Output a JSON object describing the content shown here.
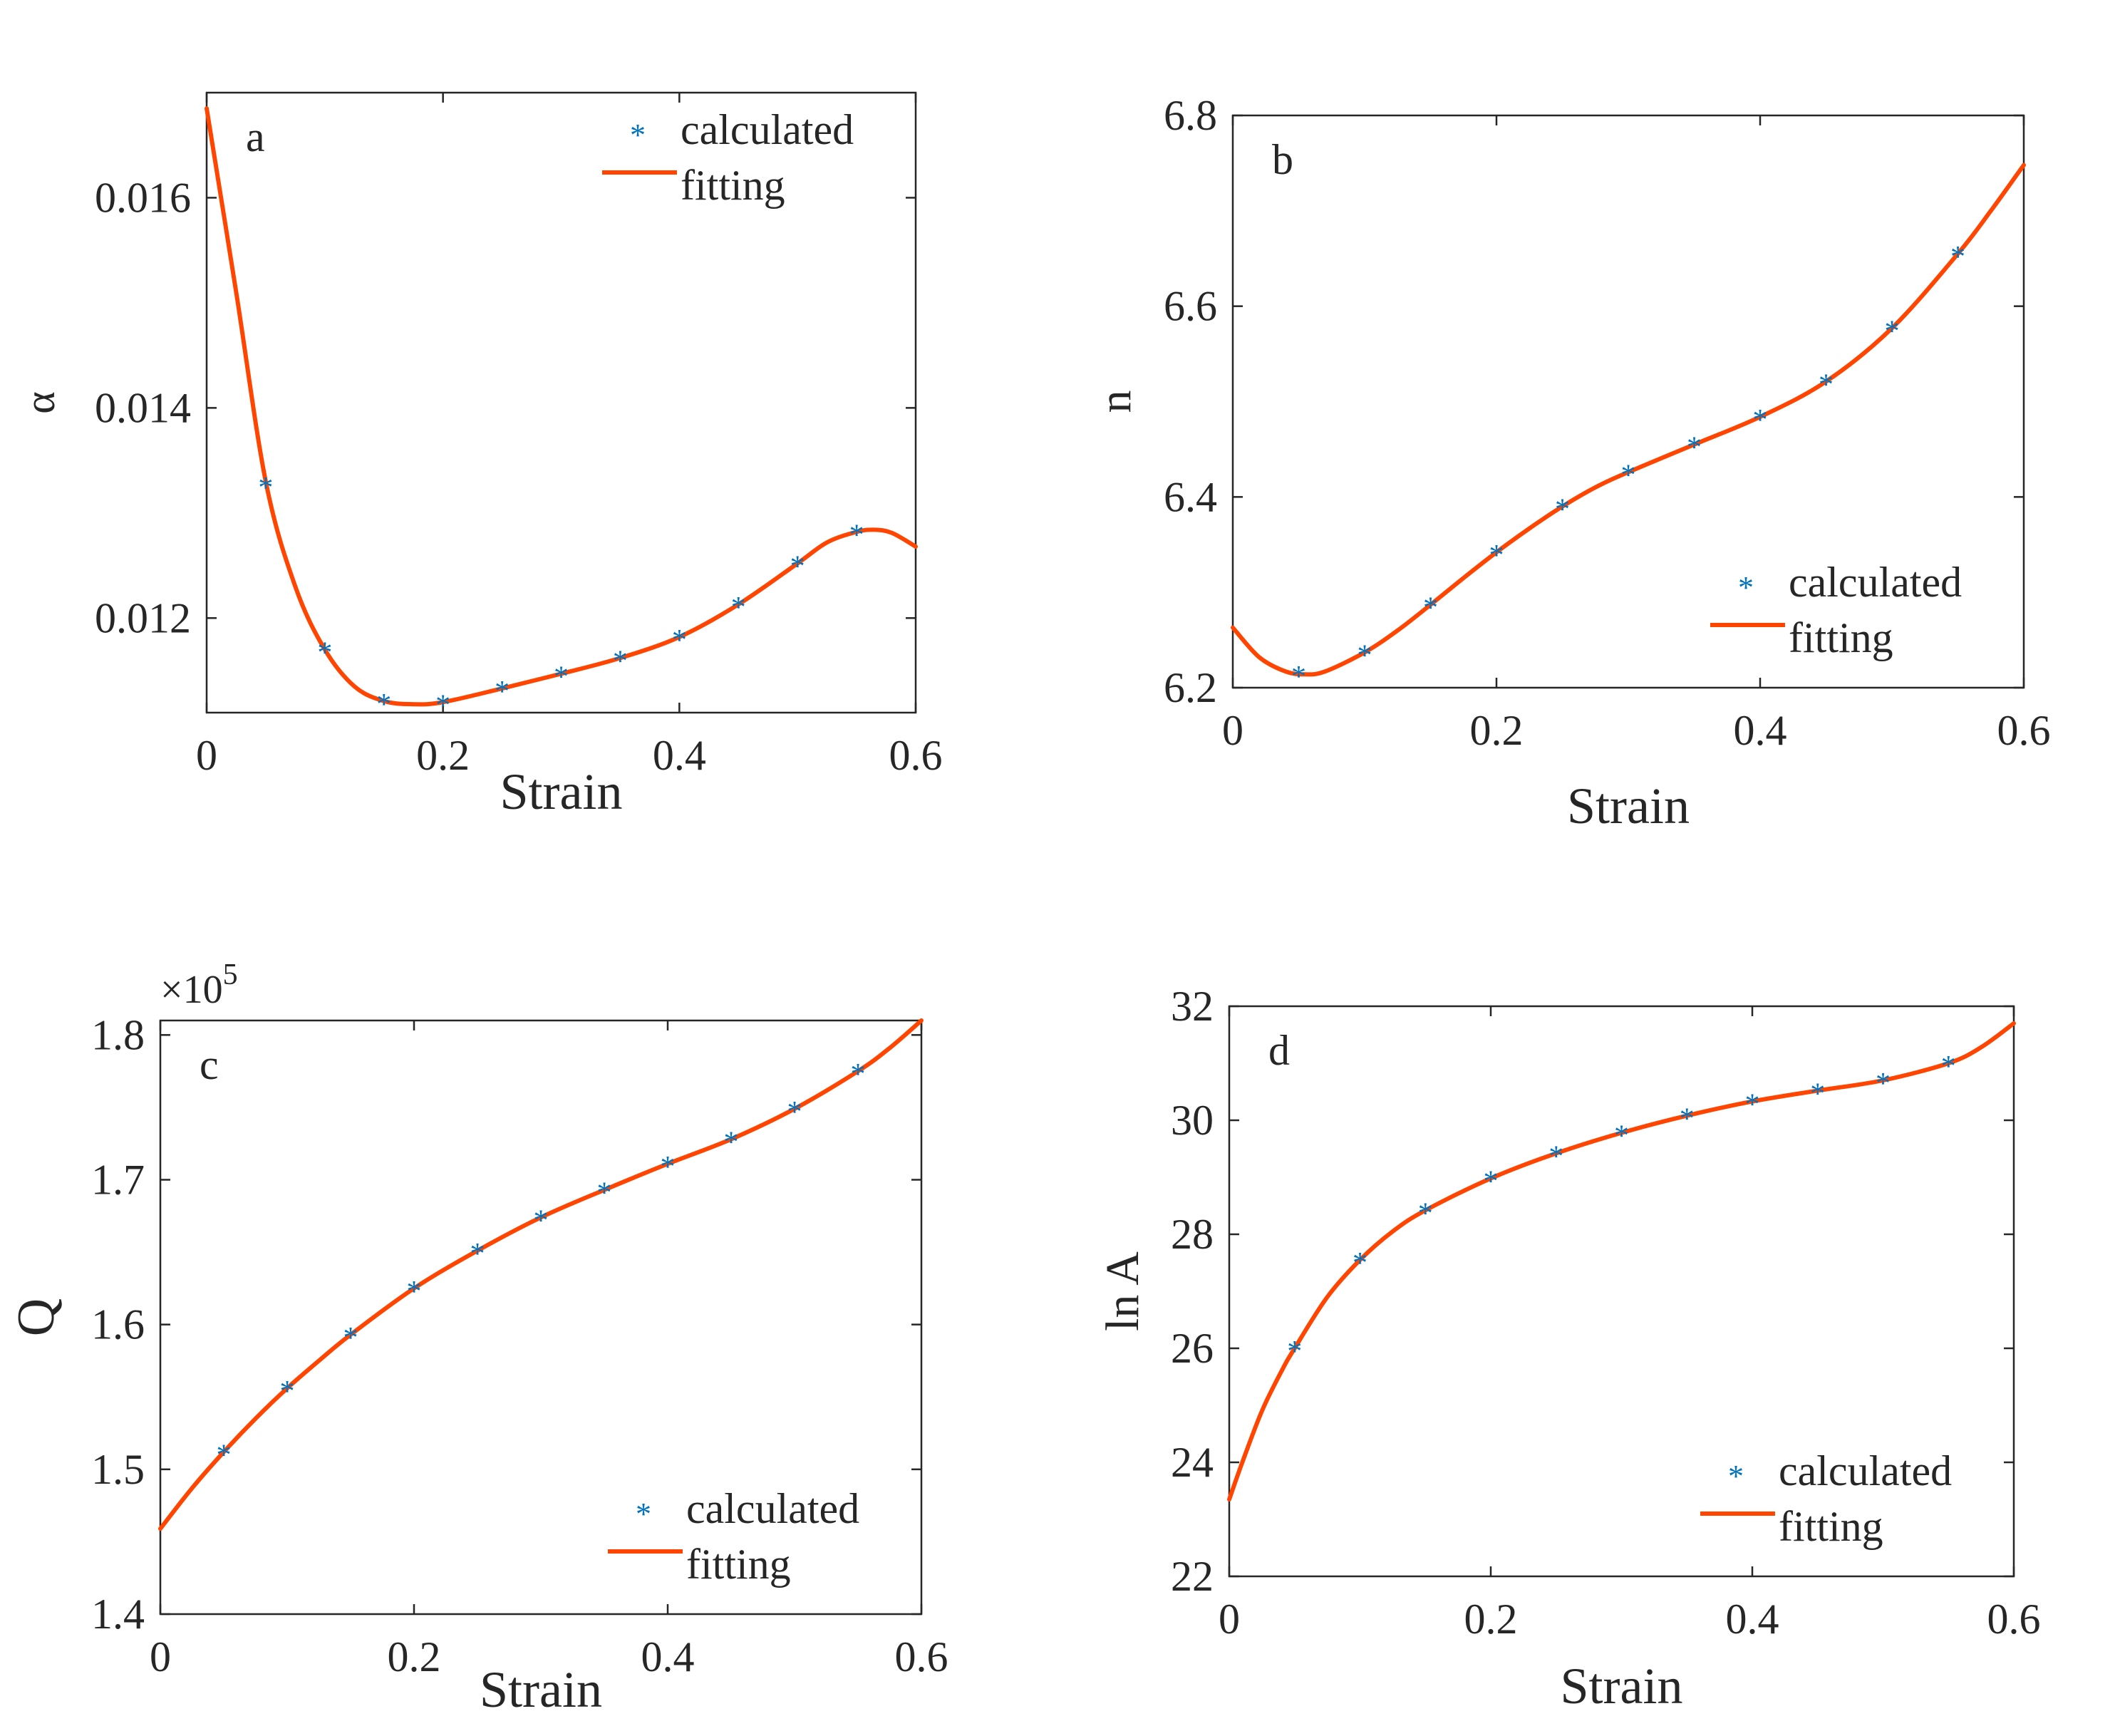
{
  "colors": {
    "calculated": "#0072BD",
    "fitting": "#FF4500",
    "axis": "#262626"
  },
  "chart_data": [
    {
      "type": "line",
      "panel_label": "a",
      "xlabel": "Strain",
      "ylabel": "α",
      "xlim": [
        0,
        0.6
      ],
      "ylim": [
        0.0111,
        0.017
      ],
      "xticks": [
        0,
        0.2,
        0.4,
        0.6
      ],
      "xtick_labels": [
        "0",
        "0.2",
        "0.4",
        "0.6"
      ],
      "yticks": [
        0.012,
        0.014,
        0.016
      ],
      "ytick_labels": [
        "0.012",
        "0.014",
        "0.016"
      ],
      "exponent_label": "",
      "legend_position": "top-right",
      "series": [
        {
          "name": "calculated",
          "style": "markers",
          "x": [
            0.05,
            0.1,
            0.15,
            0.2,
            0.25,
            0.3,
            0.35,
            0.4,
            0.45,
            0.5,
            0.55
          ],
          "y": [
            0.01327,
            0.0117,
            0.01121,
            0.0112,
            0.01133,
            0.01147,
            0.01162,
            0.01182,
            0.01213,
            0.01252,
            0.01282
          ]
        },
        {
          "name": "fitting",
          "style": "line",
          "x": [
            0,
            0.025,
            0.05,
            0.075,
            0.1,
            0.125,
            0.15,
            0.175,
            0.2,
            0.25,
            0.3,
            0.35,
            0.4,
            0.45,
            0.5,
            0.525,
            0.55,
            0.565,
            0.58,
            0.6
          ],
          "y": [
            0.01685,
            0.0151,
            0.0133,
            0.0123,
            0.0117,
            0.01135,
            0.01121,
            0.01118,
            0.0112,
            0.01133,
            0.01147,
            0.01162,
            0.01182,
            0.01213,
            0.01252,
            0.01272,
            0.01282,
            0.01284,
            0.01281,
            0.01268
          ]
        }
      ]
    },
    {
      "type": "line",
      "panel_label": "b",
      "xlabel": "Strain",
      "ylabel": "n",
      "xlim": [
        0,
        0.6
      ],
      "ylim": [
        6.2,
        6.8
      ],
      "xticks": [
        0,
        0.2,
        0.4,
        0.6
      ],
      "xtick_labels": [
        "0",
        "0.2",
        "0.4",
        "0.6"
      ],
      "yticks": [
        6.2,
        6.4,
        6.6,
        6.8
      ],
      "ytick_labels": [
        "6.2",
        "6.4",
        "6.6",
        "6.8"
      ],
      "exponent_label": "",
      "legend_position": "lower-right",
      "series": [
        {
          "name": "calculated",
          "style": "markers",
          "x": [
            0.05,
            0.1,
            0.15,
            0.2,
            0.25,
            0.3,
            0.35,
            0.4,
            0.45,
            0.5,
            0.55
          ],
          "y": [
            6.215,
            6.237,
            6.287,
            6.342,
            6.39,
            6.426,
            6.455,
            6.484,
            6.521,
            6.577,
            6.655
          ]
        },
        {
          "name": "fitting",
          "style": "line",
          "x": [
            0,
            0.02,
            0.04,
            0.055,
            0.07,
            0.1,
            0.125,
            0.15,
            0.175,
            0.2,
            0.225,
            0.25,
            0.275,
            0.3,
            0.35,
            0.4,
            0.45,
            0.5,
            0.55,
            0.575,
            0.6
          ],
          "y": [
            6.263,
            6.232,
            6.217,
            6.214,
            6.217,
            6.237,
            6.26,
            6.287,
            6.315,
            6.342,
            6.367,
            6.39,
            6.41,
            6.426,
            6.455,
            6.484,
            6.521,
            6.577,
            6.655,
            6.7,
            6.748
          ]
        }
      ]
    },
    {
      "type": "line",
      "panel_label": "c",
      "xlabel": "Strain",
      "ylabel": "Q",
      "xlim": [
        0,
        0.6
      ],
      "ylim": [
        1.4,
        1.81
      ],
      "xticks": [
        0,
        0.2,
        0.4,
        0.6
      ],
      "xtick_labels": [
        "0",
        "0.2",
        "0.4",
        "0.6"
      ],
      "yticks": [
        1.4,
        1.5,
        1.6,
        1.7,
        1.8
      ],
      "ytick_labels": [
        "1.4",
        "1.5",
        "1.6",
        "1.7",
        "1.8"
      ],
      "exponent_label": "×10",
      "exponent_power": "5",
      "legend_position": "lower-right",
      "series": [
        {
          "name": "calculated",
          "style": "markers",
          "x": [
            0.05,
            0.1,
            0.15,
            0.2,
            0.25,
            0.3,
            0.35,
            0.4,
            0.45,
            0.5,
            0.55
          ],
          "y": [
            1.512,
            1.556,
            1.593,
            1.625,
            1.651,
            1.674,
            1.693,
            1.711,
            1.728,
            1.749,
            1.775
          ]
        },
        {
          "name": "fitting",
          "style": "line",
          "x": [
            0,
            0.025,
            0.05,
            0.075,
            0.1,
            0.125,
            0.15,
            0.2,
            0.25,
            0.3,
            0.35,
            0.4,
            0.45,
            0.5,
            0.55,
            0.575,
            0.6
          ],
          "y": [
            1.459,
            1.487,
            1.512,
            1.535,
            1.556,
            1.575,
            1.593,
            1.625,
            1.651,
            1.674,
            1.693,
            1.711,
            1.728,
            1.749,
            1.775,
            1.791,
            1.81
          ]
        }
      ]
    },
    {
      "type": "line",
      "panel_label": "d",
      "xlabel": "Strain",
      "ylabel": "ln A",
      "xlim": [
        0,
        0.6
      ],
      "ylim": [
        22,
        32
      ],
      "xticks": [
        0,
        0.2,
        0.4,
        0.6
      ],
      "xtick_labels": [
        "0",
        "0.2",
        "0.4",
        "0.6"
      ],
      "yticks": [
        22,
        24,
        26,
        28,
        30,
        32
      ],
      "ytick_labels": [
        "22",
        "24",
        "26",
        "28",
        "30",
        "32"
      ],
      "exponent_label": "",
      "legend_position": "lower-right",
      "series": [
        {
          "name": "calculated",
          "style": "markers",
          "x": [
            0.05,
            0.1,
            0.15,
            0.2,
            0.25,
            0.3,
            0.35,
            0.4,
            0.45,
            0.5,
            0.55
          ],
          "y": [
            26.0,
            27.55,
            28.42,
            28.98,
            29.42,
            29.78,
            30.08,
            30.33,
            30.52,
            30.7,
            31.0
          ]
        },
        {
          "name": "fitting",
          "style": "line",
          "x": [
            0,
            0.01,
            0.025,
            0.04,
            0.05,
            0.075,
            0.1,
            0.125,
            0.15,
            0.2,
            0.25,
            0.3,
            0.35,
            0.4,
            0.45,
            0.5,
            0.55,
            0.575,
            0.6
          ],
          "y": [
            23.35,
            24.0,
            24.9,
            25.6,
            26.0,
            26.9,
            27.55,
            28.05,
            28.42,
            28.98,
            29.42,
            29.78,
            30.08,
            30.33,
            30.52,
            30.7,
            31.0,
            31.28,
            31.7
          ]
        }
      ]
    }
  ]
}
